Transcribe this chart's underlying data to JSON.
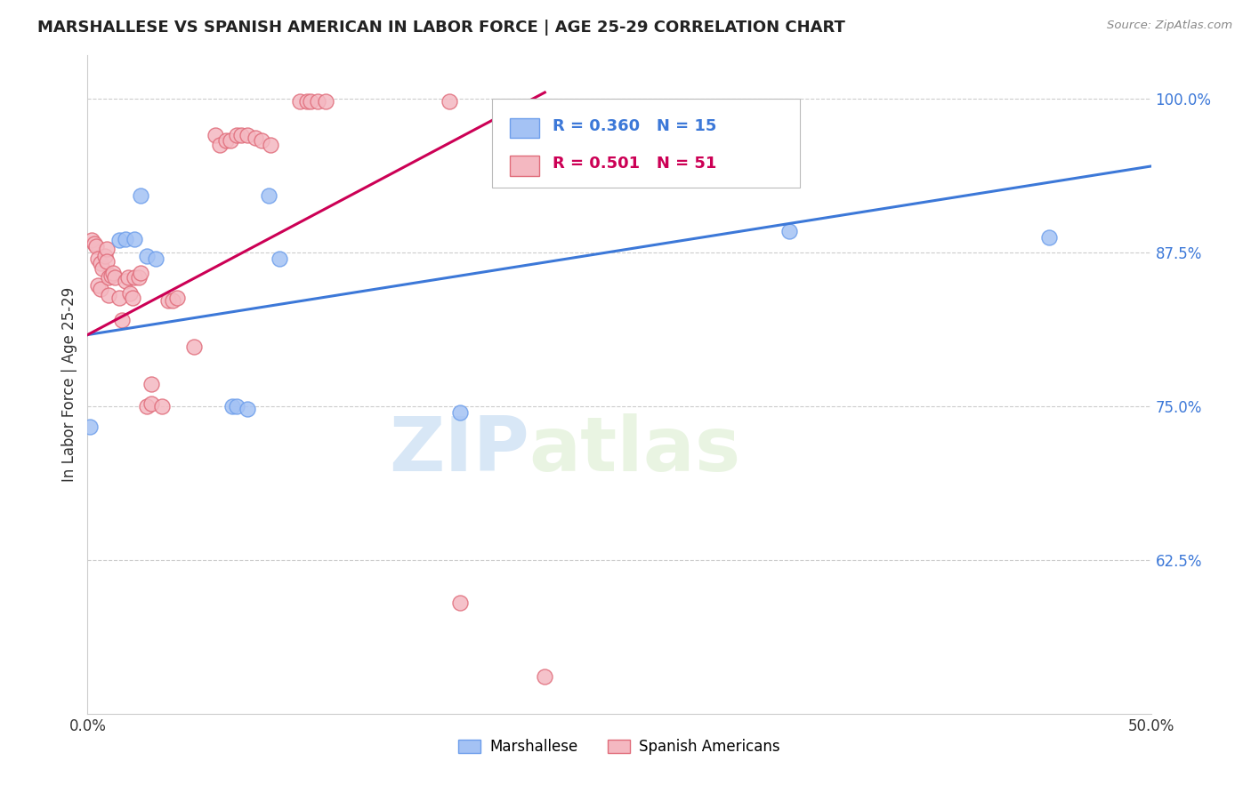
{
  "title": "MARSHALLESE VS SPANISH AMERICAN IN LABOR FORCE | AGE 25-29 CORRELATION CHART",
  "source": "Source: ZipAtlas.com",
  "ylabel": "In Labor Force | Age 25-29",
  "xlim": [
    0.0,
    0.5
  ],
  "ylim": [
    0.5,
    1.035
  ],
  "xticks": [
    0.0,
    0.05,
    0.1,
    0.15,
    0.2,
    0.25,
    0.3,
    0.35,
    0.4,
    0.45,
    0.5
  ],
  "xticklabels": [
    "0.0%",
    "",
    "",
    "",
    "",
    "",
    "",
    "",
    "",
    "",
    "50.0%"
  ],
  "yticks": [
    0.625,
    0.75,
    0.875,
    1.0
  ],
  "yticklabels": [
    "62.5%",
    "75.0%",
    "87.5%",
    "100.0%"
  ],
  "watermark_zip": "ZIP",
  "watermark_atlas": "atlas",
  "legend_blue_label": "Marshallese",
  "legend_pink_label": "Spanish Americans",
  "R_blue": 0.36,
  "N_blue": 15,
  "R_pink": 0.501,
  "N_pink": 51,
  "blue_color": "#a4c2f4",
  "pink_color": "#f4b8c1",
  "blue_edge_color": "#6d9eeb",
  "pink_edge_color": "#e06c7a",
  "blue_line_color": "#3c78d8",
  "pink_line_color": "#cc0055",
  "blue_scatter": [
    [
      0.001,
      0.733
    ],
    [
      0.015,
      0.885
    ],
    [
      0.018,
      0.886
    ],
    [
      0.022,
      0.886
    ],
    [
      0.025,
      0.921
    ],
    [
      0.028,
      0.872
    ],
    [
      0.032,
      0.87
    ],
    [
      0.068,
      0.75
    ],
    [
      0.07,
      0.75
    ],
    [
      0.075,
      0.748
    ],
    [
      0.085,
      0.921
    ],
    [
      0.09,
      0.87
    ],
    [
      0.175,
      0.745
    ],
    [
      0.33,
      0.892
    ],
    [
      0.452,
      0.887
    ]
  ],
  "pink_scatter": [
    [
      0.002,
      0.885
    ],
    [
      0.003,
      0.882
    ],
    [
      0.004,
      0.88
    ],
    [
      0.005,
      0.87
    ],
    [
      0.005,
      0.848
    ],
    [
      0.006,
      0.866
    ],
    [
      0.006,
      0.845
    ],
    [
      0.007,
      0.862
    ],
    [
      0.008,
      0.872
    ],
    [
      0.009,
      0.878
    ],
    [
      0.009,
      0.868
    ],
    [
      0.01,
      0.855
    ],
    [
      0.01,
      0.84
    ],
    [
      0.011,
      0.856
    ],
    [
      0.012,
      0.858
    ],
    [
      0.013,
      0.855
    ],
    [
      0.015,
      0.838
    ],
    [
      0.016,
      0.82
    ],
    [
      0.018,
      0.852
    ],
    [
      0.019,
      0.855
    ],
    [
      0.02,
      0.842
    ],
    [
      0.021,
      0.838
    ],
    [
      0.022,
      0.855
    ],
    [
      0.024,
      0.855
    ],
    [
      0.025,
      0.858
    ],
    [
      0.028,
      0.75
    ],
    [
      0.03,
      0.768
    ],
    [
      0.03,
      0.752
    ],
    [
      0.035,
      0.75
    ],
    [
      0.038,
      0.836
    ],
    [
      0.04,
      0.836
    ],
    [
      0.042,
      0.838
    ],
    [
      0.05,
      0.798
    ],
    [
      0.06,
      0.97
    ],
    [
      0.062,
      0.962
    ],
    [
      0.065,
      0.966
    ],
    [
      0.067,
      0.966
    ],
    [
      0.07,
      0.97
    ],
    [
      0.072,
      0.97
    ],
    [
      0.075,
      0.97
    ],
    [
      0.079,
      0.968
    ],
    [
      0.082,
      0.966
    ],
    [
      0.086,
      0.962
    ],
    [
      0.1,
      0.998
    ],
    [
      0.103,
      0.998
    ],
    [
      0.105,
      0.998
    ],
    [
      0.108,
      0.998
    ],
    [
      0.112,
      0.998
    ],
    [
      0.17,
      0.998
    ],
    [
      0.175,
      0.59
    ],
    [
      0.215,
      0.53
    ]
  ],
  "blue_line_x": [
    0.0,
    0.5
  ],
  "blue_line_y": [
    0.808,
    0.945
  ],
  "pink_line_x": [
    0.0,
    0.215
  ],
  "pink_line_y": [
    0.808,
    1.005
  ]
}
